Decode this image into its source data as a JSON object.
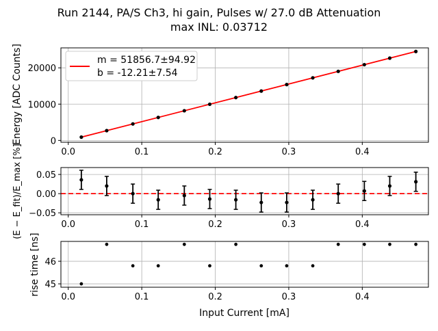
{
  "chart_data": [
    {
      "type": "line",
      "title": "Run 2144, PA/S Ch3, hi gain, Pulses w/ 27.0 dB Attenuation",
      "subtitle": "max INL: 0.03712",
      "xlabel": "",
      "ylabel": "Energy [ADC Counts]",
      "xlim": [
        -0.01,
        0.49
      ],
      "ylim": [
        -500,
        25500
      ],
      "xticks": [
        "0.0",
        "0.1",
        "0.2",
        "0.3",
        "0.4"
      ],
      "yticks": [
        "0",
        "10000",
        "20000"
      ],
      "grid": true,
      "x": [
        0.0178,
        0.0523,
        0.0879,
        0.1224,
        0.1579,
        0.1925,
        0.228,
        0.2626,
        0.2972,
        0.3327,
        0.3673,
        0.4028,
        0.4374,
        0.4729
      ],
      "fit": {
        "slope": 51856.7,
        "intercept": -12.21,
        "color": "#ff0000"
      },
      "legend": {
        "placement": "top-left",
        "entries": [
          "m = 51856.7±94.92",
          "b = -12.21±7.54"
        ]
      }
    },
    {
      "type": "scatter",
      "ylabel": "(E − E_fit)/E_max [%]",
      "ylim": [
        -0.055,
        0.068
      ],
      "yticks": [
        "0.05",
        "0.00",
        "−0.05"
      ],
      "xticks": [
        "0.0",
        "0.1",
        "0.2",
        "0.3",
        "0.4"
      ],
      "grid": true,
      "y": [
        0.036,
        0.02,
        0.0,
        -0.016,
        -0.005,
        -0.014,
        -0.016,
        -0.023,
        -0.023,
        -0.016,
        0.0,
        0.007,
        0.02,
        0.031
      ],
      "yerr": 0.025,
      "reference_line": {
        "y": 0,
        "color": "#ff0000",
        "style": "dashed"
      }
    },
    {
      "type": "scatter",
      "xlabel": "Input Current [mA]",
      "ylabel": "rise time [ns]",
      "ylim": [
        44.85,
        46.88
      ],
      "yticks": [
        "45",
        "46"
      ],
      "xticks": [
        "0.0",
        "0.1",
        "0.2",
        "0.3",
        "0.4"
      ],
      "grid": true,
      "y": [
        45.0,
        46.75,
        45.8,
        45.8,
        46.75,
        45.8,
        46.75,
        45.8,
        45.8,
        45.8,
        46.75,
        46.75,
        46.75,
        46.75
      ]
    }
  ]
}
